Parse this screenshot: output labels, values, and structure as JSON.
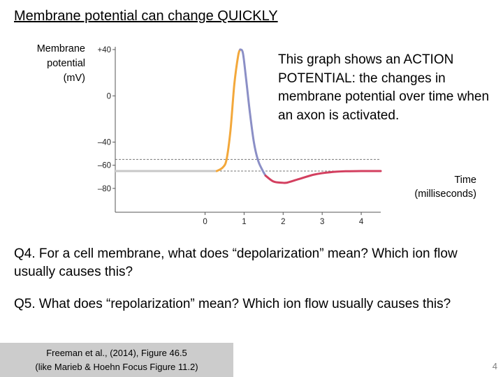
{
  "slide": {
    "title": "Membrane potential can change QUICKLY",
    "description": "This graph shows an ACTION POTENTIAL: the changes in membrane potential over time when an axon is activated.",
    "questions": {
      "q4": "Q4. For a cell membrane, what does “depolarization” mean? Which ion flow usually causes this?",
      "q5": "Q5. What does “repolarization” mean? Which ion flow usually causes this?"
    },
    "citation": {
      "line1": "Freeman et al., (2014), Figure 46.5",
      "line2": "(like Marieb & Hoehn Focus Figure 11.2)"
    },
    "page_number": "4"
  },
  "chart_data": {
    "type": "line",
    "ylabel": [
      "Membrane",
      "potential",
      "(mV)"
    ],
    "xlabel": [
      "Time",
      "(milliseconds)"
    ],
    "ylim": [
      -100,
      40
    ],
    "xlim": [
      -2.3,
      4.5
    ],
    "yticks": [
      {
        "value": 40,
        "label": "+40"
      },
      {
        "value": 0,
        "label": "0"
      },
      {
        "value": -40,
        "label": "–40"
      },
      {
        "value": -60,
        "label": "–60"
      },
      {
        "value": -80,
        "label": "–80"
      }
    ],
    "xticks": [
      {
        "value": 0,
        "label": "0"
      },
      {
        "value": 1,
        "label": "1"
      },
      {
        "value": 2,
        "label": "2"
      },
      {
        "value": 3,
        "label": "3"
      },
      {
        "value": 4,
        "label": "4"
      }
    ],
    "reference_lines": [
      -55,
      -65
    ],
    "grid": false,
    "segments": [
      {
        "phase": "resting",
        "color": "#c8c8c8",
        "x": [
          -2.3,
          -1.0,
          0.0,
          0.3
        ],
        "y": [
          -65,
          -65,
          -65,
          -65
        ]
      },
      {
        "phase": "depolarization",
        "color": "#f3a83b",
        "x": [
          0.3,
          0.45,
          0.55,
          0.65,
          0.75,
          0.85,
          0.9
        ],
        "y": [
          -65,
          -62,
          -55,
          -30,
          10,
          35,
          40
        ]
      },
      {
        "phase": "repolarization",
        "color": "#8b8fc6",
        "x": [
          0.9,
          0.97,
          1.05,
          1.15,
          1.25,
          1.35,
          1.45,
          1.55
        ],
        "y": [
          40,
          37,
          15,
          -15,
          -40,
          -55,
          -63,
          -69
        ]
      },
      {
        "phase": "hyperpolarization",
        "color": "#d33f5f",
        "x": [
          1.55,
          1.75,
          1.95,
          2.1,
          2.4,
          2.8,
          3.2,
          3.6,
          4.0,
          4.5
        ],
        "y": [
          -69,
          -74,
          -75,
          -75,
          -72,
          -68,
          -66,
          -65.2,
          -65,
          -65
        ]
      }
    ]
  }
}
